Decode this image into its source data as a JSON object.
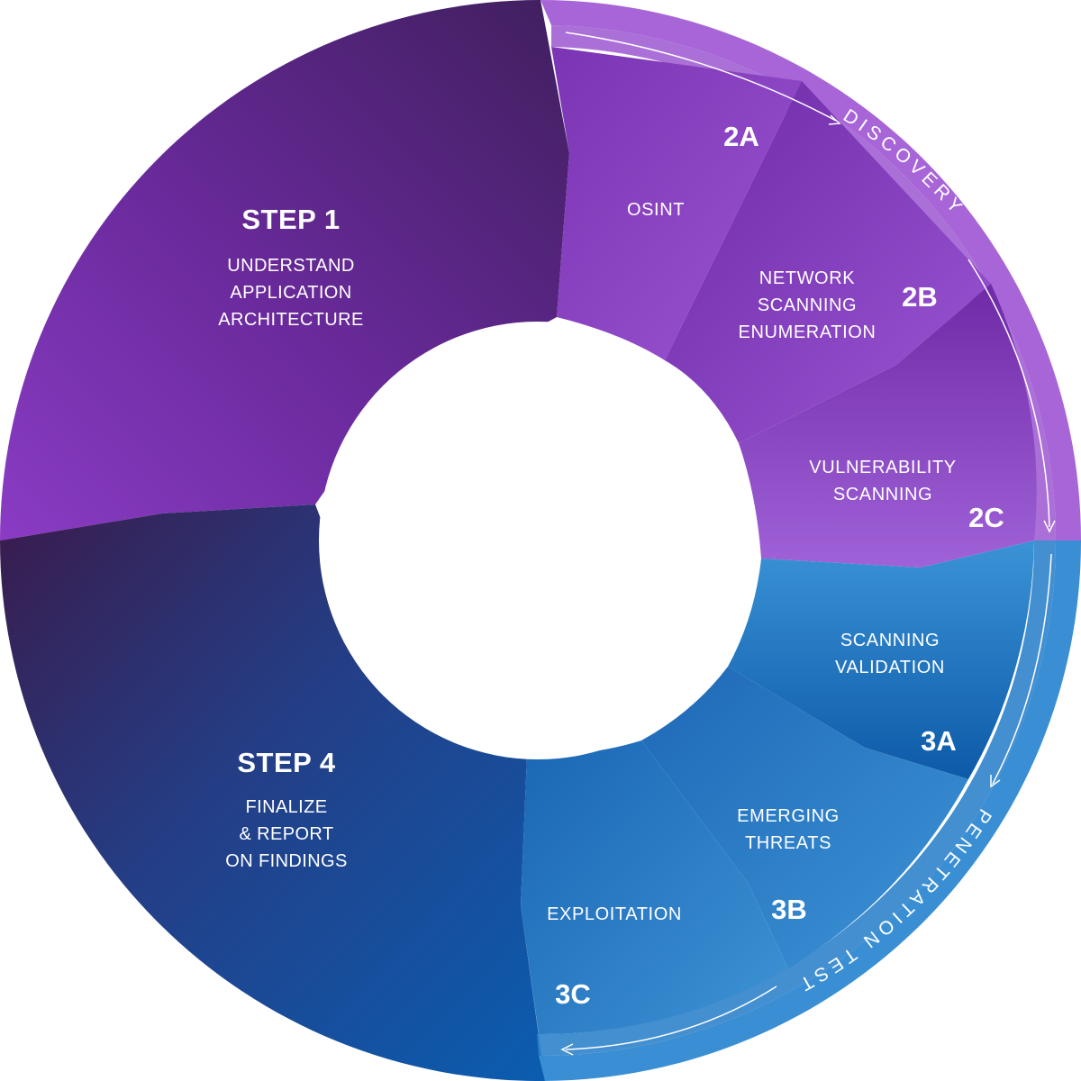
{
  "step1": {
    "title": "STEP 1",
    "lines": [
      "UNDERSTAND",
      "APPLICATION",
      "ARCHITECTURE"
    ]
  },
  "step4": {
    "title": "STEP 4",
    "lines": [
      "FINALIZE",
      "& REPORT",
      "ON FINDINGS"
    ]
  },
  "discovery": {
    "band_label": "DISCOVERY",
    "segments": [
      {
        "code": "2A",
        "lines": [
          "OSINT"
        ]
      },
      {
        "code": "2B",
        "lines": [
          "NETWORK",
          "SCANNING",
          "ENUMERATION"
        ]
      },
      {
        "code": "2C",
        "lines": [
          "VULNERABILITY",
          "SCANNING"
        ]
      }
    ]
  },
  "penetration": {
    "band_label": "PENETRATION TEST",
    "segments": [
      {
        "code": "3A",
        "lines": [
          "SCANNING",
          "VALIDATION"
        ]
      },
      {
        "code": "3B",
        "lines": [
          "EMERGING",
          "THREATS"
        ]
      },
      {
        "code": "3C",
        "lines": [
          "EXPLOITATION"
        ]
      }
    ]
  },
  "colors": {
    "step1": "#6a2a9e",
    "step4": "#16478f",
    "discovery": "#8d49c8",
    "discovery_band": "#a865d8",
    "penetration": "#2a7bc5",
    "penetration_band": "#3a8fd4"
  }
}
